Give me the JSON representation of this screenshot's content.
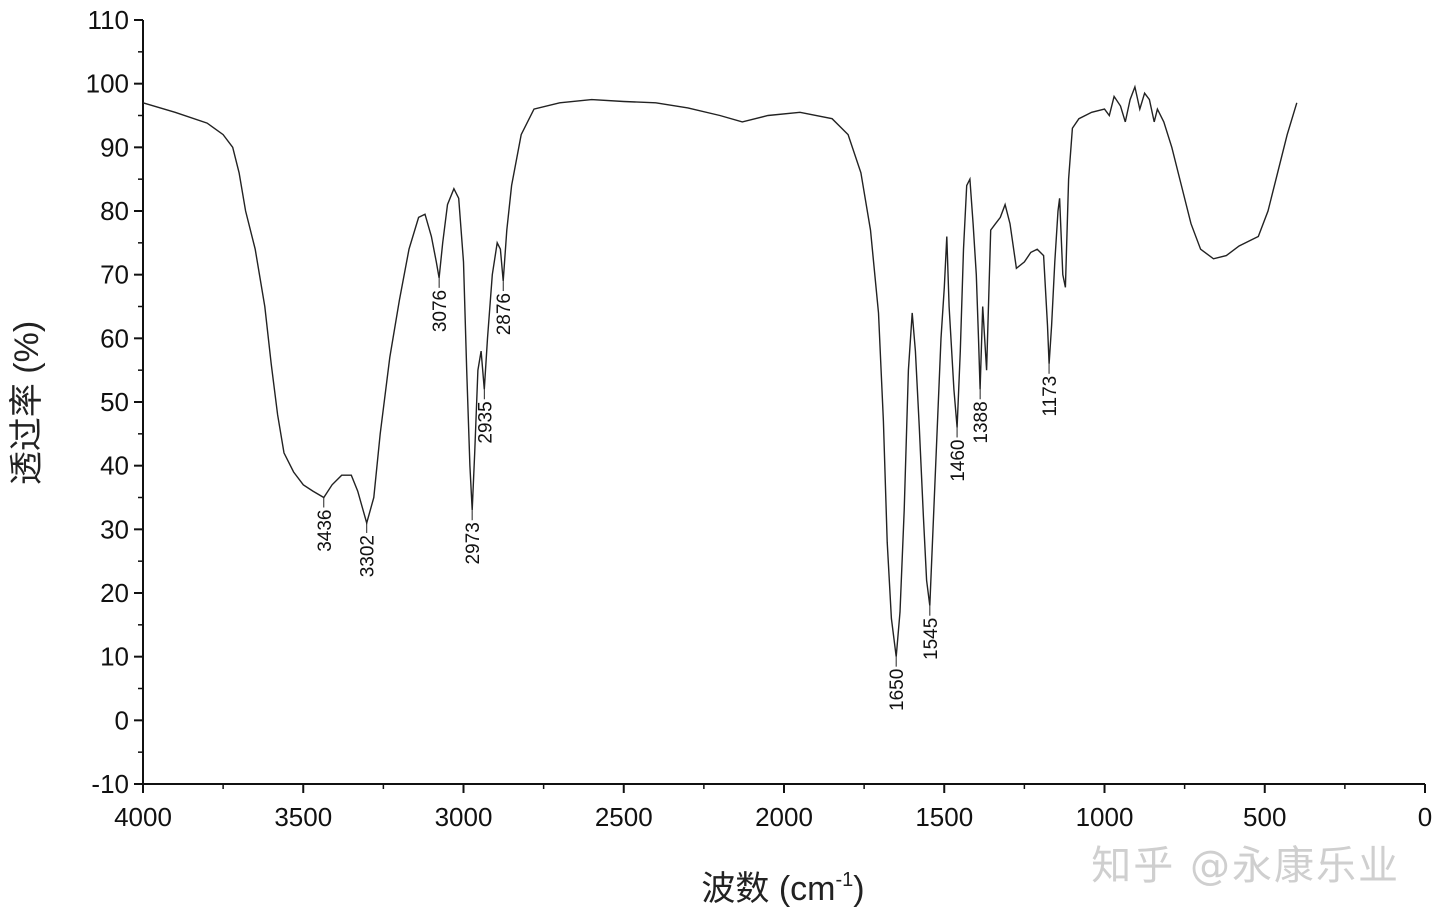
{
  "chart_data": {
    "type": "line",
    "title": "",
    "xlabel": "波数 (cm",
    "xlabel_sup": "-1",
    "xlabel_suffix": ")",
    "ylabel": "透过率 (%)",
    "xlim": [
      4000,
      0
    ],
    "ylim": [
      -10,
      110
    ],
    "x_ticks": [
      "4000",
      "3500",
      "3000",
      "2500",
      "2000",
      "1500",
      "1000",
      "500",
      "0"
    ],
    "y_ticks": [
      "-10",
      "0",
      "10",
      "20",
      "30",
      "40",
      "50",
      "60",
      "70",
      "80",
      "90",
      "100",
      "110"
    ],
    "grid": false,
    "series": [
      {
        "points": [
          [
            4000,
            97.0
          ],
          [
            3900,
            95.5
          ],
          [
            3800,
            93.8
          ],
          [
            3750,
            92.0
          ],
          [
            3720,
            90.0
          ],
          [
            3700,
            86.0
          ],
          [
            3680,
            80.0
          ],
          [
            3650,
            74.0
          ],
          [
            3620,
            65.0
          ],
          [
            3600,
            56.0
          ],
          [
            3580,
            48.0
          ],
          [
            3560,
            42.0
          ],
          [
            3530,
            39.0
          ],
          [
            3500,
            37.0
          ],
          [
            3470,
            36.0
          ],
          [
            3436,
            35.0
          ],
          [
            3410,
            37.0
          ],
          [
            3380,
            38.5
          ],
          [
            3350,
            38.5
          ],
          [
            3330,
            36.0
          ],
          [
            3302,
            31.0
          ],
          [
            3280,
            35.0
          ],
          [
            3260,
            45.0
          ],
          [
            3230,
            57.0
          ],
          [
            3200,
            66.0
          ],
          [
            3170,
            74.0
          ],
          [
            3140,
            79.0
          ],
          [
            3120,
            79.5
          ],
          [
            3100,
            76.0
          ],
          [
            3085,
            72.0
          ],
          [
            3076,
            69.5
          ],
          [
            3065,
            75.0
          ],
          [
            3050,
            81.0
          ],
          [
            3030,
            83.5
          ],
          [
            3015,
            82.0
          ],
          [
            3000,
            72.0
          ],
          [
            2990,
            55.0
          ],
          [
            2980,
            40.0
          ],
          [
            2973,
            33.0
          ],
          [
            2965,
            42.0
          ],
          [
            2955,
            55.0
          ],
          [
            2945,
            58.0
          ],
          [
            2935,
            52.0
          ],
          [
            2925,
            60.0
          ],
          [
            2910,
            70.0
          ],
          [
            2895,
            75.0
          ],
          [
            2885,
            74.0
          ],
          [
            2876,
            69.0
          ],
          [
            2865,
            77.0
          ],
          [
            2850,
            84.0
          ],
          [
            2820,
            92.0
          ],
          [
            2780,
            96.0
          ],
          [
            2700,
            97.0
          ],
          [
            2600,
            97.5
          ],
          [
            2500,
            97.2
          ],
          [
            2400,
            97.0
          ],
          [
            2300,
            96.2
          ],
          [
            2200,
            95.0
          ],
          [
            2130,
            94.0
          ],
          [
            2050,
            95.0
          ],
          [
            1950,
            95.5
          ],
          [
            1850,
            94.5
          ],
          [
            1800,
            92.0
          ],
          [
            1760,
            86.0
          ],
          [
            1730,
            77.0
          ],
          [
            1705,
            64.0
          ],
          [
            1690,
            47.0
          ],
          [
            1678,
            28.0
          ],
          [
            1665,
            16.0
          ],
          [
            1650,
            10.0
          ],
          [
            1638,
            17.0
          ],
          [
            1625,
            33.0
          ],
          [
            1612,
            55.0
          ],
          [
            1600,
            64.0
          ],
          [
            1590,
            58.0
          ],
          [
            1578,
            46.0
          ],
          [
            1565,
            32.0
          ],
          [
            1555,
            22.0
          ],
          [
            1545,
            18.0
          ],
          [
            1535,
            30.0
          ],
          [
            1520,
            48.0
          ],
          [
            1510,
            60.0
          ],
          [
            1500,
            68.0
          ],
          [
            1492,
            76.0
          ],
          [
            1485,
            65.0
          ],
          [
            1470,
            52.0
          ],
          [
            1460,
            46.0
          ],
          [
            1450,
            58.0
          ],
          [
            1440,
            74.0
          ],
          [
            1430,
            84.0
          ],
          [
            1420,
            85.0
          ],
          [
            1410,
            78.0
          ],
          [
            1400,
            70.0
          ],
          [
            1393,
            60.0
          ],
          [
            1388,
            52.0
          ],
          [
            1380,
            65.0
          ],
          [
            1368,
            55.0
          ],
          [
            1355,
            77.0
          ],
          [
            1340,
            78.0
          ],
          [
            1325,
            79.0
          ],
          [
            1310,
            81.0
          ],
          [
            1295,
            78.0
          ],
          [
            1275,
            71.0
          ],
          [
            1250,
            72.0
          ],
          [
            1230,
            73.5
          ],
          [
            1210,
            74.0
          ],
          [
            1190,
            73.0
          ],
          [
            1178,
            62.0
          ],
          [
            1173,
            56.0
          ],
          [
            1165,
            62.0
          ],
          [
            1155,
            72.0
          ],
          [
            1145,
            80.0
          ],
          [
            1140,
            82.0
          ],
          [
            1130,
            70.0
          ],
          [
            1122,
            68.0
          ],
          [
            1112,
            85.0
          ],
          [
            1100,
            93.0
          ],
          [
            1080,
            94.5
          ],
          [
            1040,
            95.5
          ],
          [
            1000,
            96.0
          ],
          [
            985,
            95.0
          ],
          [
            970,
            98.0
          ],
          [
            950,
            96.5
          ],
          [
            935,
            94.0
          ],
          [
            920,
            97.5
          ],
          [
            905,
            99.5
          ],
          [
            890,
            96.0
          ],
          [
            875,
            98.5
          ],
          [
            860,
            97.5
          ],
          [
            845,
            94.0
          ],
          [
            835,
            96.0
          ],
          [
            815,
            94.0
          ],
          [
            790,
            90.0
          ],
          [
            760,
            84.0
          ],
          [
            730,
            78.0
          ],
          [
            700,
            74.0
          ],
          [
            660,
            72.5
          ],
          [
            620,
            73.0
          ],
          [
            580,
            74.5
          ],
          [
            540,
            75.5
          ],
          [
            520,
            76.0
          ],
          [
            490,
            80.0
          ],
          [
            460,
            86.0
          ],
          [
            430,
            92.0
          ],
          [
            400,
            97.0
          ]
        ]
      }
    ],
    "peak_labels": [
      {
        "x": 3436,
        "y": 35,
        "text": "3436"
      },
      {
        "x": 3302,
        "y": 31,
        "text": "3302"
      },
      {
        "x": 3076,
        "y": 69.5,
        "text": "3076"
      },
      {
        "x": 2973,
        "y": 33,
        "text": "2973"
      },
      {
        "x": 2935,
        "y": 52,
        "text": "2935"
      },
      {
        "x": 2876,
        "y": 69,
        "text": "2876"
      },
      {
        "x": 1650,
        "y": 10,
        "text": "1650"
      },
      {
        "x": 1545,
        "y": 18,
        "text": "1545"
      },
      {
        "x": 1460,
        "y": 46,
        "text": "1460"
      },
      {
        "x": 1388,
        "y": 52,
        "text": "1388"
      },
      {
        "x": 1173,
        "y": 56,
        "text": "1173"
      }
    ]
  },
  "watermark": "知乎 @永康乐业"
}
